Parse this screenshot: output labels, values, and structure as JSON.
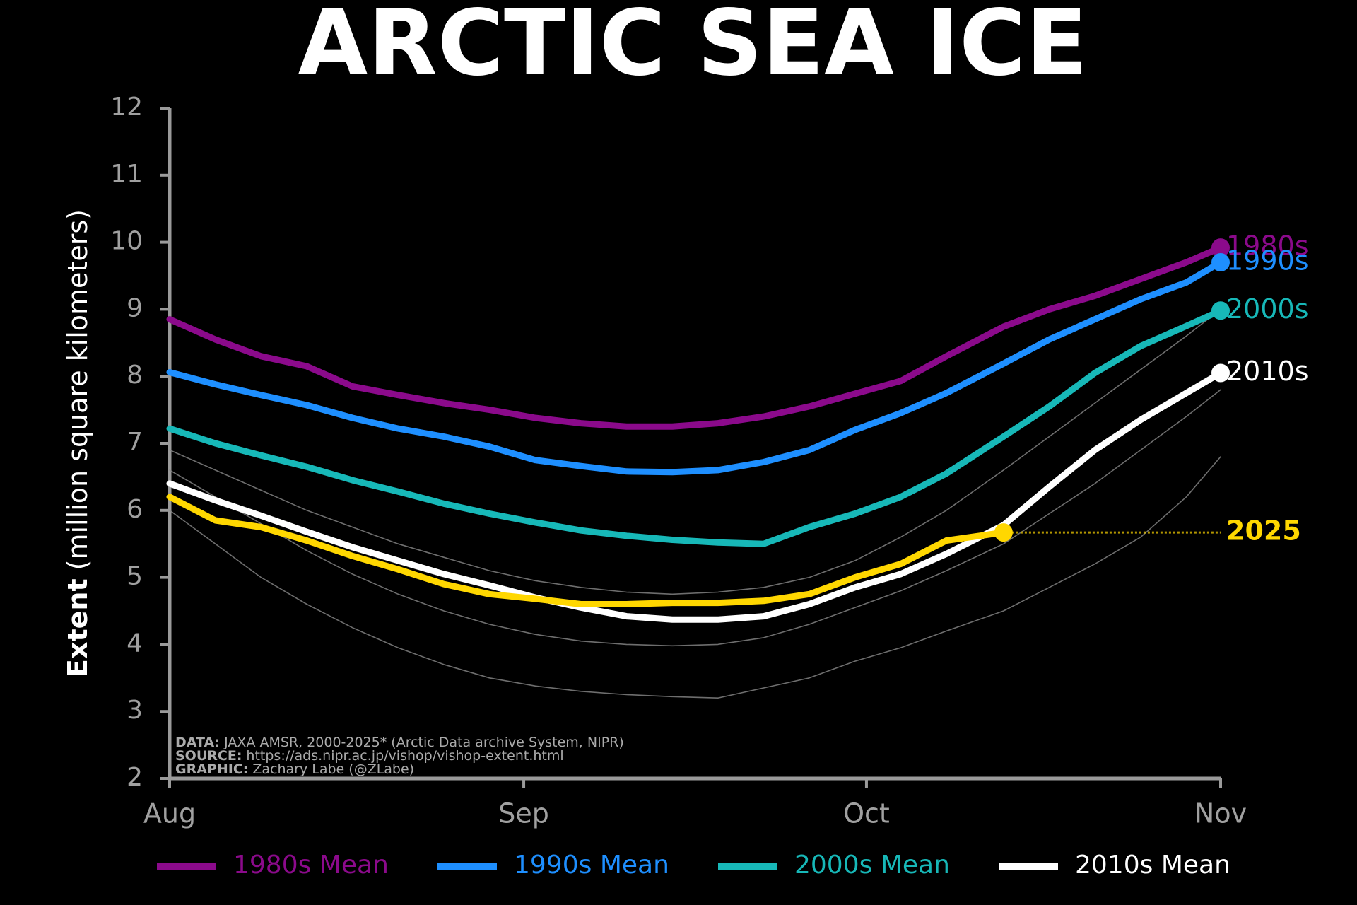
{
  "chart_data": {
    "type": "line",
    "title": "ARCTIC SEA ICE",
    "y_label_bold": "Extent",
    "y_label": "(million square kilometers)",
    "x": [
      0,
      4,
      8,
      12,
      16,
      20,
      24,
      28,
      32,
      36,
      40,
      44,
      48,
      52,
      56,
      60,
      64,
      68,
      73,
      77,
      81,
      85,
      89,
      92
    ],
    "xlim": [
      0,
      92
    ],
    "xticks": [
      {
        "value": 0,
        "label": "Aug"
      },
      {
        "value": 31,
        "label": "Sep"
      },
      {
        "value": 61,
        "label": "Oct"
      },
      {
        "value": 92,
        "label": "Nov"
      }
    ],
    "ylim": [
      2,
      12
    ],
    "yticks": [
      2,
      3,
      4,
      5,
      6,
      7,
      8,
      9,
      10,
      11,
      12
    ],
    "grid": false,
    "series": [
      {
        "color": "#8a8a8a",
        "values": [
          6.0,
          5.5,
          5.0,
          4.6,
          4.25,
          3.95,
          3.7,
          3.5,
          3.38,
          3.3,
          3.25,
          3.22,
          3.2,
          3.35,
          3.5,
          3.75,
          3.95,
          4.2,
          4.5,
          4.85,
          5.2,
          5.6,
          6.2,
          6.8
        ]
      },
      {
        "color": "#8a8a8a",
        "values": [
          6.9,
          6.6,
          6.3,
          6.0,
          5.75,
          5.5,
          5.3,
          5.1,
          4.95,
          4.85,
          4.78,
          4.75,
          4.78,
          4.85,
          5.0,
          5.25,
          5.6,
          6.0,
          6.6,
          7.1,
          7.6,
          8.1,
          8.6,
          9.0
        ]
      },
      {
        "color": "#8a8a8a",
        "values": [
          6.6,
          6.2,
          5.8,
          5.4,
          5.05,
          4.75,
          4.5,
          4.3,
          4.15,
          4.05,
          4.0,
          3.98,
          4.0,
          4.1,
          4.3,
          4.55,
          4.8,
          5.1,
          5.5,
          5.95,
          6.4,
          6.9,
          7.4,
          7.8
        ]
      },
      {
        "name": "1980s Mean",
        "label": "1980s",
        "color": "#8b0a8b",
        "values": [
          8.85,
          8.55,
          8.3,
          8.15,
          7.85,
          7.72,
          7.6,
          7.5,
          7.38,
          7.3,
          7.25,
          7.25,
          7.3,
          7.4,
          7.55,
          7.74,
          7.93,
          8.3,
          8.74,
          9.0,
          9.2,
          9.45,
          9.7,
          9.92
        ]
      },
      {
        "name": "1990s Mean",
        "label": "1990s",
        "color": "#1e8fff",
        "values": [
          8.06,
          7.88,
          7.72,
          7.57,
          7.38,
          7.22,
          7.1,
          6.95,
          6.75,
          6.66,
          6.58,
          6.57,
          6.6,
          6.72,
          6.9,
          7.2,
          7.45,
          7.75,
          8.19,
          8.55,
          8.85,
          9.15,
          9.4,
          9.7
        ]
      },
      {
        "name": "2000s Mean",
        "label": "2000s",
        "color": "#17b8b8",
        "values": [
          7.22,
          7.0,
          6.82,
          6.65,
          6.45,
          6.28,
          6.1,
          5.95,
          5.82,
          5.7,
          5.62,
          5.56,
          5.52,
          5.5,
          5.75,
          5.95,
          6.2,
          6.55,
          7.1,
          7.55,
          8.05,
          8.45,
          8.75,
          8.98
        ]
      },
      {
        "name": "2010s Mean",
        "label": "2010s",
        "color": "#ffffff",
        "values": [
          6.4,
          6.15,
          5.92,
          5.68,
          5.45,
          5.25,
          5.05,
          4.88,
          4.7,
          4.55,
          4.42,
          4.37,
          4.37,
          4.42,
          4.6,
          4.85,
          5.05,
          5.35,
          5.78,
          6.35,
          6.9,
          7.35,
          7.75,
          8.05
        ]
      },
      {
        "label": "2025",
        "color": "#ffd700",
        "values": [
          6.2,
          5.85,
          5.75,
          5.55,
          5.32,
          5.12,
          4.9,
          4.75,
          4.68,
          4.6,
          4.6,
          4.62,
          4.62,
          4.65,
          4.75,
          5.0,
          5.2,
          5.55,
          5.67,
          null,
          null,
          null,
          null,
          null
        ]
      }
    ],
    "credits": [
      {
        "label": "DATA:",
        "text": "JAXA AMSR, 2000-2025* (Arctic Data archive System, NIPR)"
      },
      {
        "label": "SOURCE:",
        "text": "https://ads.nipr.ac.jp/vishop/vishop-extent.html"
      },
      {
        "label": "GRAPHIC:",
        "text": "Zachary Labe (@ZLabe)"
      }
    ]
  }
}
